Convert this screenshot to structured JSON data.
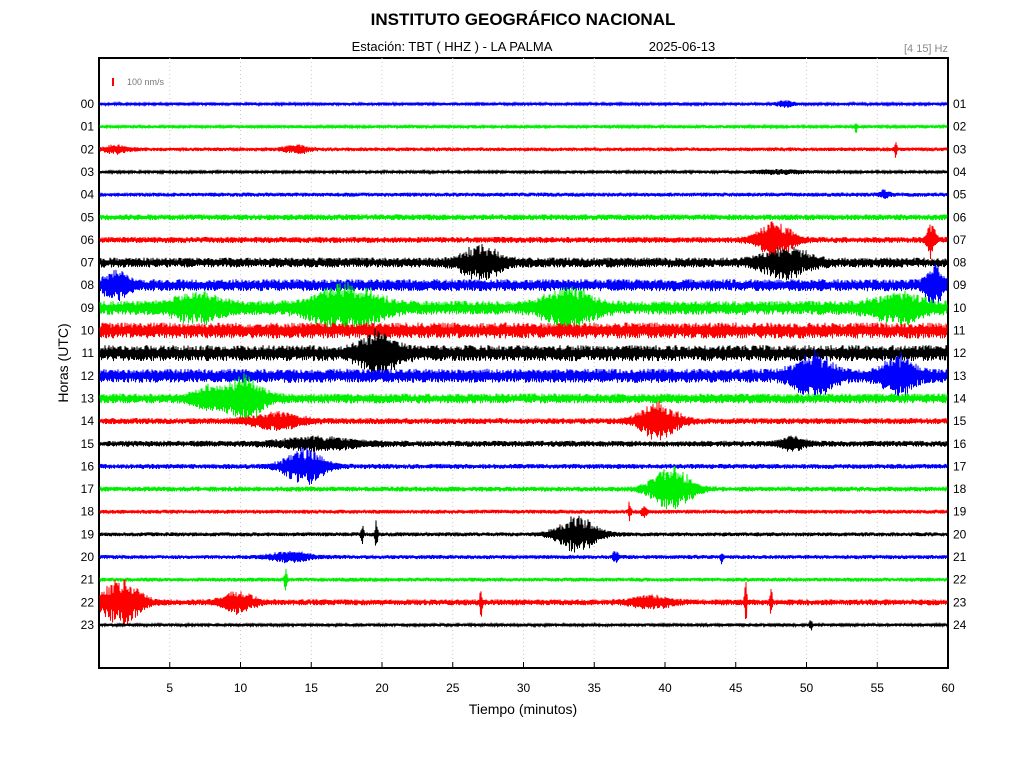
{
  "title": "INSTITUTO GEOGRÁFICO NACIONAL",
  "station_label": "Estación:  TBT ( HHZ ) - LA PALMA",
  "date": "2025-06-13",
  "band": "[4 15] Hz",
  "scale_label": "100 nm/s",
  "chart_data": {
    "type": "line",
    "title": "INSTITUTO GEOGRÁFICO NACIONAL",
    "xlabel": "Tiempo (minutos)",
    "ylabel": "Horas (UTC)",
    "xlim": [
      0,
      60
    ],
    "x_ticks": [
      5,
      10,
      15,
      20,
      25,
      30,
      35,
      40,
      45,
      50,
      55,
      60
    ],
    "left_hour_labels": [
      "00",
      "01",
      "02",
      "03",
      "04",
      "05",
      "06",
      "07",
      "08",
      "09",
      "10",
      "11",
      "12",
      "13",
      "14",
      "15",
      "16",
      "17",
      "18",
      "19",
      "20",
      "21",
      "22",
      "23"
    ],
    "right_hour_labels": [
      "01",
      "02",
      "03",
      "04",
      "05",
      "06",
      "07",
      "08",
      "09",
      "10",
      "11",
      "12",
      "13",
      "14",
      "15",
      "16",
      "17",
      "18",
      "19",
      "20",
      "21",
      "22",
      "23",
      "24"
    ],
    "trace_colors": [
      "#0000ff",
      "#00ee00",
      "#ff0000",
      "#000000"
    ],
    "grid": "vertical dotted",
    "traces": [
      {
        "hour": "00",
        "noise": 1.5,
        "events": [
          [
            48.5,
            3,
            0.6
          ]
        ]
      },
      {
        "hour": "01",
        "noise": 1.5,
        "events": [
          [
            53.5,
            6,
            0.1
          ]
        ]
      },
      {
        "hour": "02",
        "noise": 1.8,
        "events": [
          [
            1.2,
            4,
            1
          ],
          [
            14,
            4,
            1
          ],
          [
            56.3,
            9,
            0.1
          ]
        ]
      },
      {
        "hour": "03",
        "noise": 1.5,
        "events": [
          [
            48,
            2,
            2
          ]
        ]
      },
      {
        "hour": "04",
        "noise": 2,
        "events": [
          [
            55.5,
            4,
            0.4
          ]
        ]
      },
      {
        "hour": "05",
        "noise": 3,
        "events": []
      },
      {
        "hour": "06",
        "noise": 3,
        "events": [
          [
            47.8,
            18,
            1.3
          ],
          [
            58.8,
            22,
            0.3
          ]
        ]
      },
      {
        "hour": "07",
        "noise": 5,
        "events": [
          [
            27,
            16,
            1.5
          ],
          [
            48.5,
            14,
            1.8
          ]
        ]
      },
      {
        "hour": "08",
        "noise": 6,
        "events": [
          [
            1.2,
            12,
            1
          ],
          [
            59,
            20,
            0.6
          ]
        ]
      },
      {
        "hour": "09",
        "noise": 7,
        "events": [
          [
            7,
            12,
            2
          ],
          [
            17.5,
            22,
            2.5
          ],
          [
            33.2,
            20,
            1.8
          ],
          [
            56.5,
            12,
            2
          ]
        ]
      },
      {
        "hour": "10",
        "noise": 8,
        "events": []
      },
      {
        "hour": "11",
        "noise": 8,
        "events": [
          [
            19.8,
            18,
            1.5
          ]
        ]
      },
      {
        "hour": "12",
        "noise": 7,
        "events": [
          [
            50.5,
            20,
            1.5
          ],
          [
            56.5,
            18,
            1.2
          ]
        ]
      },
      {
        "hour": "13",
        "noise": 5,
        "events": [
          [
            10.2,
            22,
            1.5
          ],
          [
            7.5,
            10,
            1
          ]
        ]
      },
      {
        "hour": "14",
        "noise": 3,
        "events": [
          [
            39.5,
            18,
            1.5
          ],
          [
            12.5,
            8,
            2
          ]
        ]
      },
      {
        "hour": "15",
        "noise": 3,
        "events": [
          [
            15.5,
            6,
            3
          ],
          [
            49,
            6,
            1
          ]
        ]
      },
      {
        "hour": "16",
        "noise": 2.5,
        "events": [
          [
            14.5,
            18,
            1.5
          ]
        ]
      },
      {
        "hour": "17",
        "noise": 2.5,
        "events": [
          [
            40.5,
            22,
            1.5
          ]
        ]
      },
      {
        "hour": "18",
        "noise": 2,
        "events": [
          [
            37.5,
            10,
            0.1
          ],
          [
            38.5,
            6,
            0.2
          ]
        ]
      },
      {
        "hour": "19",
        "noise": 2,
        "events": [
          [
            33.8,
            18,
            1.5
          ],
          [
            18.6,
            14,
            0.1
          ],
          [
            19.6,
            14,
            0.1
          ]
        ]
      },
      {
        "hour": "20",
        "noise": 2,
        "events": [
          [
            13.5,
            5,
            1.5
          ],
          [
            36.5,
            6,
            0.2
          ],
          [
            44,
            6,
            0.1
          ]
        ]
      },
      {
        "hour": "21",
        "noise": 2,
        "events": [
          [
            13.2,
            14,
            0.1
          ]
        ]
      },
      {
        "hour": "22",
        "noise": 3,
        "events": [
          [
            1.6,
            22,
            1.5
          ],
          [
            9.8,
            10,
            1.2
          ],
          [
            27,
            14,
            0.1
          ],
          [
            45.7,
            20,
            0.1
          ],
          [
            47.5,
            12,
            0.1
          ],
          [
            39,
            6,
            1.5
          ]
        ]
      },
      {
        "hour": "23",
        "noise": 1.5,
        "events": [
          [
            50.3,
            8,
            0.1
          ]
        ]
      }
    ]
  }
}
